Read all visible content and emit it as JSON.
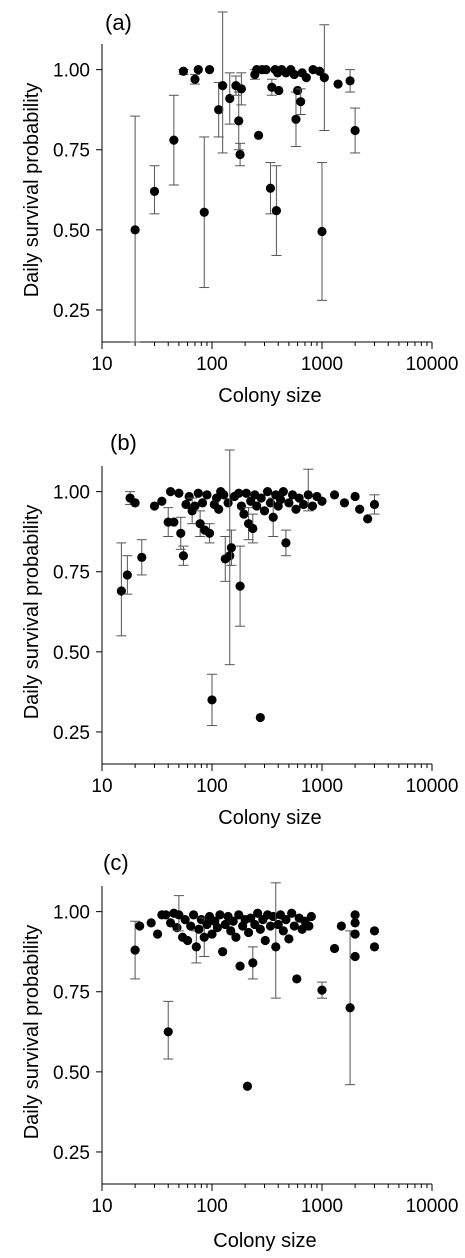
{
  "chart_data": [
    {
      "type": "scatter",
      "panel_label": "(a)",
      "xlabel": "Colony size",
      "ylabel": "Daily survival probability",
      "xscale": "log",
      "xlim": [
        10,
        10000
      ],
      "ylim": [
        0.15,
        1.08
      ],
      "x_ticks": [
        10,
        100,
        1000,
        10000
      ],
      "x_tick_labels": [
        "10",
        "100",
        "1000",
        "10000"
      ],
      "y_ticks": [
        0.25,
        0.5,
        0.75,
        1.0
      ],
      "y_tick_labels": [
        "0.25",
        "0.50",
        "0.75",
        "1.00"
      ],
      "grid": false,
      "legend": "none",
      "marker_color": "#000000",
      "points": [
        {
          "x": 20,
          "y": 0.5,
          "lo": 0.15,
          "hi": 0.855
        },
        {
          "x": 30,
          "y": 0.62,
          "lo": 0.55,
          "hi": 0.7
        },
        {
          "x": 45,
          "y": 0.78,
          "lo": 0.64,
          "hi": 0.92
        },
        {
          "x": 55,
          "y": 0.995,
          "lo": 0.985,
          "hi": 1.0
        },
        {
          "x": 70,
          "y": 0.97,
          "lo": 0.955,
          "hi": 0.985
        },
        {
          "x": 75,
          "y": 1.0
        },
        {
          "x": 85,
          "y": 0.555,
          "lo": 0.32,
          "hi": 0.79
        },
        {
          "x": 95,
          "y": 1.0
        },
        {
          "x": 115,
          "y": 0.875,
          "lo": 0.79,
          "hi": 0.96
        },
        {
          "x": 125,
          "y": 0.95,
          "lo": 0.74,
          "hi": 1.18
        },
        {
          "x": 145,
          "y": 0.91,
          "lo": 0.83,
          "hi": 0.99
        },
        {
          "x": 165,
          "y": 0.95,
          "lo": 0.92,
          "hi": 0.98
        },
        {
          "x": 175,
          "y": 0.84,
          "lo": 0.75,
          "hi": 0.93
        },
        {
          "x": 180,
          "y": 0.735,
          "lo": 0.7,
          "hi": 0.77
        },
        {
          "x": 185,
          "y": 0.94,
          "lo": 0.89,
          "hi": 0.99
        },
        {
          "x": 245,
          "y": 0.985,
          "lo": 0.97,
          "hi": 1.0
        },
        {
          "x": 255,
          "y": 1.0
        },
        {
          "x": 265,
          "y": 0.795
        },
        {
          "x": 285,
          "y": 1.0
        },
        {
          "x": 310,
          "y": 1.0
        },
        {
          "x": 340,
          "y": 0.63,
          "lo": 0.55,
          "hi": 0.71
        },
        {
          "x": 350,
          "y": 0.945,
          "lo": 0.92,
          "hi": 0.97
        },
        {
          "x": 375,
          "y": 1.0
        },
        {
          "x": 385,
          "y": 0.56,
          "lo": 0.42,
          "hi": 0.7
        },
        {
          "x": 395,
          "y": 0.99
        },
        {
          "x": 405,
          "y": 0.935
        },
        {
          "x": 430,
          "y": 1.0
        },
        {
          "x": 470,
          "y": 0.99
        },
        {
          "x": 520,
          "y": 1.0
        },
        {
          "x": 560,
          "y": 0.985
        },
        {
          "x": 580,
          "y": 0.845,
          "lo": 0.76,
          "hi": 0.93
        },
        {
          "x": 600,
          "y": 0.935
        },
        {
          "x": 640,
          "y": 0.9,
          "lo": 0.86,
          "hi": 0.94
        },
        {
          "x": 660,
          "y": 0.99
        },
        {
          "x": 720,
          "y": 0.975
        },
        {
          "x": 830,
          "y": 1.0
        },
        {
          "x": 950,
          "y": 0.995
        },
        {
          "x": 1000,
          "y": 0.495,
          "lo": 0.28,
          "hi": 0.71
        },
        {
          "x": 1050,
          "y": 0.975,
          "lo": 0.81,
          "hi": 1.14
        },
        {
          "x": 1400,
          "y": 0.955
        },
        {
          "x": 1800,
          "y": 0.965,
          "lo": 0.93,
          "hi": 1.0
        },
        {
          "x": 2000,
          "y": 0.81,
          "lo": 0.74,
          "hi": 0.88
        }
      ]
    },
    {
      "type": "scatter",
      "panel_label": "(b)",
      "xlabel": "Colony size",
      "ylabel": "Daily survival probability",
      "xscale": "log",
      "xlim": [
        10,
        10000
      ],
      "ylim": [
        0.15,
        1.08
      ],
      "x_ticks": [
        10,
        100,
        1000,
        10000
      ],
      "x_tick_labels": [
        "10",
        "100",
        "1000",
        "10000"
      ],
      "y_ticks": [
        0.25,
        0.5,
        0.75,
        1.0
      ],
      "y_tick_labels": [
        "0.25",
        "0.50",
        "0.75",
        "1.00"
      ],
      "grid": false,
      "legend": "none",
      "marker_color": "#000000",
      "points": [
        {
          "x": 15,
          "y": 0.69,
          "lo": 0.55,
          "hi": 0.84
        },
        {
          "x": 17,
          "y": 0.74,
          "lo": 0.68,
          "hi": 0.8
        },
        {
          "x": 18,
          "y": 0.98,
          "lo": 0.96,
          "hi": 1.0
        },
        {
          "x": 20,
          "y": 0.965
        },
        {
          "x": 23,
          "y": 0.795,
          "lo": 0.74,
          "hi": 0.85
        },
        {
          "x": 30,
          "y": 0.955
        },
        {
          "x": 35,
          "y": 0.97
        },
        {
          "x": 40,
          "y": 0.905,
          "lo": 0.86,
          "hi": 0.95
        },
        {
          "x": 42,
          "y": 1.0
        },
        {
          "x": 45,
          "y": 0.905
        },
        {
          "x": 50,
          "y": 0.995
        },
        {
          "x": 52,
          "y": 0.87,
          "lo": 0.82,
          "hi": 0.92
        },
        {
          "x": 55,
          "y": 0.8,
          "lo": 0.77,
          "hi": 0.83
        },
        {
          "x": 58,
          "y": 0.96
        },
        {
          "x": 62,
          "y": 0.985
        },
        {
          "x": 66,
          "y": 0.94,
          "lo": 0.9,
          "hi": 0.98
        },
        {
          "x": 70,
          "y": 0.955
        },
        {
          "x": 75,
          "y": 0.995
        },
        {
          "x": 78,
          "y": 0.9,
          "lo": 0.86,
          "hi": 0.94
        },
        {
          "x": 82,
          "y": 0.965
        },
        {
          "x": 86,
          "y": 0.88
        },
        {
          "x": 90,
          "y": 0.99
        },
        {
          "x": 95,
          "y": 0.87,
          "lo": 0.84,
          "hi": 0.9
        },
        {
          "x": 100,
          "y": 0.35,
          "lo": 0.27,
          "hi": 0.43
        },
        {
          "x": 105,
          "y": 0.96
        },
        {
          "x": 110,
          "y": 0.98
        },
        {
          "x": 115,
          "y": 0.945
        },
        {
          "x": 120,
          "y": 1.0
        },
        {
          "x": 128,
          "y": 0.99
        },
        {
          "x": 132,
          "y": 0.79,
          "lo": 0.72,
          "hi": 0.86
        },
        {
          "x": 140,
          "y": 0.965
        },
        {
          "x": 145,
          "y": 0.8,
          "lo": 0.46,
          "hi": 1.13
        },
        {
          "x": 150,
          "y": 0.825,
          "lo": 0.77,
          "hi": 0.88
        },
        {
          "x": 160,
          "y": 0.985
        },
        {
          "x": 175,
          "y": 0.995
        },
        {
          "x": 180,
          "y": 0.705,
          "lo": 0.58,
          "hi": 0.83
        },
        {
          "x": 185,
          "y": 0.955
        },
        {
          "x": 195,
          "y": 0.93
        },
        {
          "x": 205,
          "y": 0.995
        },
        {
          "x": 215,
          "y": 0.9,
          "lo": 0.85,
          "hi": 0.95
        },
        {
          "x": 225,
          "y": 0.97
        },
        {
          "x": 235,
          "y": 0.885,
          "lo": 0.84,
          "hi": 0.93
        },
        {
          "x": 245,
          "y": 0.99
        },
        {
          "x": 255,
          "y": 0.955
        },
        {
          "x": 275,
          "y": 0.295
        },
        {
          "x": 280,
          "y": 0.98
        },
        {
          "x": 300,
          "y": 0.94
        },
        {
          "x": 320,
          "y": 1.0
        },
        {
          "x": 340,
          "y": 0.965
        },
        {
          "x": 360,
          "y": 0.92,
          "lo": 0.86,
          "hi": 0.98
        },
        {
          "x": 380,
          "y": 0.99
        },
        {
          "x": 400,
          "y": 0.955
        },
        {
          "x": 420,
          "y": 0.975
        },
        {
          "x": 445,
          "y": 1.0
        },
        {
          "x": 470,
          "y": 0.84,
          "lo": 0.8,
          "hi": 0.88
        },
        {
          "x": 500,
          "y": 0.965
        },
        {
          "x": 540,
          "y": 0.99
        },
        {
          "x": 580,
          "y": 0.945
        },
        {
          "x": 620,
          "y": 0.98
        },
        {
          "x": 680,
          "y": 0.96
        },
        {
          "x": 750,
          "y": 0.99,
          "lo": 0.94,
          "hi": 1.07
        },
        {
          "x": 820,
          "y": 0.955
        },
        {
          "x": 900,
          "y": 0.985
        },
        {
          "x": 1000,
          "y": 0.97
        },
        {
          "x": 1300,
          "y": 0.99
        },
        {
          "x": 1600,
          "y": 0.965
        },
        {
          "x": 2000,
          "y": 0.985
        },
        {
          "x": 2200,
          "y": 0.945
        },
        {
          "x": 2600,
          "y": 0.915
        },
        {
          "x": 3000,
          "y": 0.96,
          "lo": 0.93,
          "hi": 0.99
        }
      ]
    },
    {
      "type": "scatter",
      "panel_label": "(c)",
      "xlabel": "Colony size",
      "ylabel": "Daily survival probability",
      "xscale": "log",
      "xlim": [
        10,
        10000
      ],
      "ylim": [
        0.15,
        1.08
      ],
      "x_ticks": [
        10,
        100,
        1000,
        10000
      ],
      "x_tick_labels": [
        "10",
        "100",
        "1000",
        "10000"
      ],
      "y_ticks": [
        0.25,
        0.5,
        0.75,
        1.0
      ],
      "y_tick_labels": [
        "0.25",
        "0.50",
        "0.75",
        "1.00"
      ],
      "grid": false,
      "legend": "none",
      "marker_color": "#000000",
      "points": [
        {
          "x": 20,
          "y": 0.88,
          "lo": 0.79,
          "hi": 0.97
        },
        {
          "x": 22,
          "y": 0.955
        },
        {
          "x": 28,
          "y": 0.965
        },
        {
          "x": 32,
          "y": 0.93
        },
        {
          "x": 35,
          "y": 0.99
        },
        {
          "x": 38,
          "y": 0.99
        },
        {
          "x": 40,
          "y": 0.625,
          "lo": 0.54,
          "hi": 0.72
        },
        {
          "x": 42,
          "y": 0.965
        },
        {
          "x": 45,
          "y": 0.995
        },
        {
          "x": 48,
          "y": 0.95
        },
        {
          "x": 50,
          "y": 0.99,
          "lo": 0.94,
          "hi": 1.05
        },
        {
          "x": 54,
          "y": 0.92
        },
        {
          "x": 57,
          "y": 0.975
        },
        {
          "x": 60,
          "y": 0.91
        },
        {
          "x": 64,
          "y": 0.955
        },
        {
          "x": 68,
          "y": 0.99
        },
        {
          "x": 72,
          "y": 0.89,
          "lo": 0.84,
          "hi": 0.94
        },
        {
          "x": 76,
          "y": 0.945
        },
        {
          "x": 80,
          "y": 0.975
        },
        {
          "x": 85,
          "y": 0.92,
          "lo": 0.86,
          "hi": 0.98
        },
        {
          "x": 90,
          "y": 0.96
        },
        {
          "x": 95,
          "y": 0.985
        },
        {
          "x": 100,
          "y": 0.93
        },
        {
          "x": 106,
          "y": 0.97
        },
        {
          "x": 112,
          "y": 0.95
        },
        {
          "x": 118,
          "y": 0.99
        },
        {
          "x": 125,
          "y": 0.875
        },
        {
          "x": 132,
          "y": 0.96
        },
        {
          "x": 140,
          "y": 0.985
        },
        {
          "x": 148,
          "y": 0.94
        },
        {
          "x": 156,
          "y": 0.97
        },
        {
          "x": 165,
          "y": 0.92
        },
        {
          "x": 175,
          "y": 0.99
        },
        {
          "x": 180,
          "y": 0.83
        },
        {
          "x": 190,
          "y": 0.955
        },
        {
          "x": 200,
          "y": 0.975
        },
        {
          "x": 210,
          "y": 0.455
        },
        {
          "x": 215,
          "y": 0.935
        },
        {
          "x": 225,
          "y": 0.98
        },
        {
          "x": 235,
          "y": 0.84,
          "lo": 0.79,
          "hi": 0.89
        },
        {
          "x": 245,
          "y": 0.96
        },
        {
          "x": 260,
          "y": 0.995
        },
        {
          "x": 275,
          "y": 0.945
        },
        {
          "x": 290,
          "y": 0.975
        },
        {
          "x": 305,
          "y": 0.91
        },
        {
          "x": 320,
          "y": 0.99
        },
        {
          "x": 340,
          "y": 0.955
        },
        {
          "x": 360,
          "y": 0.985
        },
        {
          "x": 380,
          "y": 0.89,
          "lo": 0.73,
          "hi": 1.09
        },
        {
          "x": 400,
          "y": 0.96
        },
        {
          "x": 420,
          "y": 0.99
        },
        {
          "x": 445,
          "y": 0.94
        },
        {
          "x": 470,
          "y": 0.975
        },
        {
          "x": 500,
          "y": 0.915
        },
        {
          "x": 530,
          "y": 0.995
        },
        {
          "x": 560,
          "y": 0.955
        },
        {
          "x": 590,
          "y": 0.79
        },
        {
          "x": 620,
          "y": 0.98
        },
        {
          "x": 660,
          "y": 0.945
        },
        {
          "x": 700,
          "y": 0.97
        },
        {
          "x": 760,
          "y": 0.955
        },
        {
          "x": 800,
          "y": 0.985
        },
        {
          "x": 1000,
          "y": 0.755,
          "lo": 0.73,
          "hi": 0.78
        },
        {
          "x": 1300,
          "y": 0.885
        },
        {
          "x": 1500,
          "y": 0.955
        },
        {
          "x": 1800,
          "y": 0.7,
          "lo": 0.46,
          "hi": 0.94
        },
        {
          "x": 2000,
          "y": 0.99
        },
        {
          "x": 2000,
          "y": 0.965
        },
        {
          "x": 2000,
          "y": 0.93
        },
        {
          "x": 2000,
          "y": 0.86
        },
        {
          "x": 3000,
          "y": 0.94
        },
        {
          "x": 3000,
          "y": 0.89
        }
      ]
    }
  ]
}
